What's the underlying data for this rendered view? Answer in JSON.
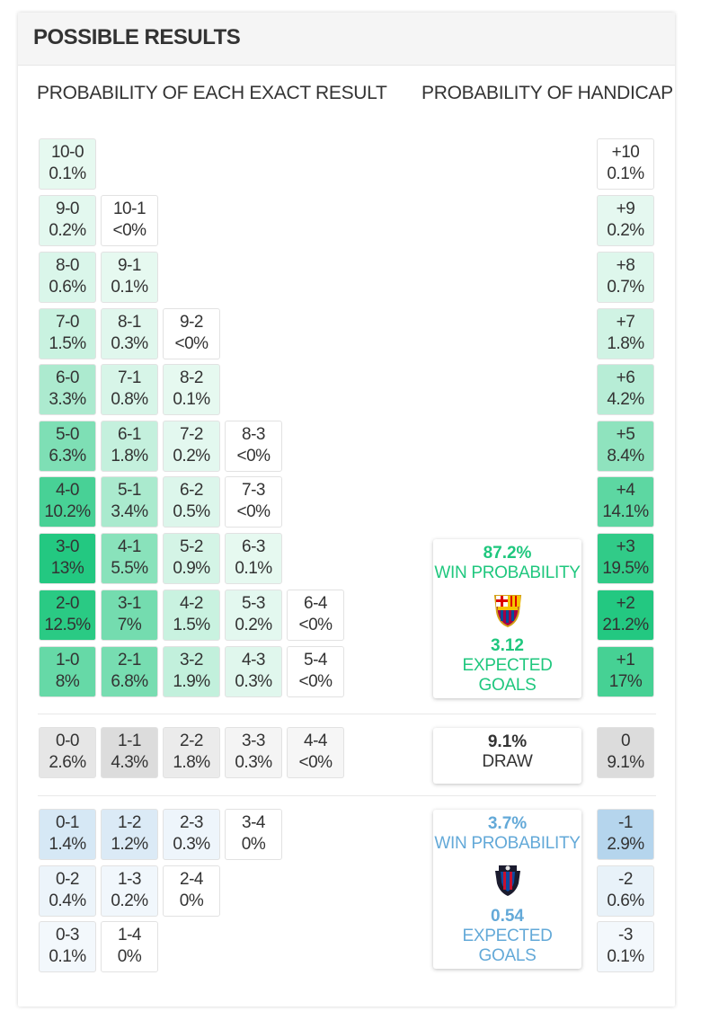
{
  "title": "POSSIBLE RESULTS",
  "exact_heading": "PROBABILITY OF EACH EXACT RESULT",
  "handicap_heading": "PROBABILITY OF HANDICAP",
  "colors": {
    "green_text": "#1fc77e",
    "blue_text": "#63a9d8"
  },
  "home_wins": [
    [
      {
        "s": "10-0",
        "p": "0.1%"
      }
    ],
    [
      {
        "s": "9-0",
        "p": "0.2%"
      },
      {
        "s": "10-1",
        "p": "<0%"
      }
    ],
    [
      {
        "s": "8-0",
        "p": "0.6%"
      },
      {
        "s": "9-1",
        "p": "0.1%"
      }
    ],
    [
      {
        "s": "7-0",
        "p": "1.5%"
      },
      {
        "s": "8-1",
        "p": "0.3%"
      },
      {
        "s": "9-2",
        "p": "<0%"
      }
    ],
    [
      {
        "s": "6-0",
        "p": "3.3%"
      },
      {
        "s": "7-1",
        "p": "0.8%"
      },
      {
        "s": "8-2",
        "p": "0.1%"
      }
    ],
    [
      {
        "s": "5-0",
        "p": "6.3%"
      },
      {
        "s": "6-1",
        "p": "1.8%"
      },
      {
        "s": "7-2",
        "p": "0.2%"
      },
      {
        "s": "8-3",
        "p": "<0%"
      }
    ],
    [
      {
        "s": "4-0",
        "p": "10.2%"
      },
      {
        "s": "5-1",
        "p": "3.4%"
      },
      {
        "s": "6-2",
        "p": "0.5%"
      },
      {
        "s": "7-3",
        "p": "<0%"
      }
    ],
    [
      {
        "s": "3-0",
        "p": "13%"
      },
      {
        "s": "4-1",
        "p": "5.5%"
      },
      {
        "s": "5-2",
        "p": "0.9%"
      },
      {
        "s": "6-3",
        "p": "0.1%"
      }
    ],
    [
      {
        "s": "2-0",
        "p": "12.5%"
      },
      {
        "s": "3-1",
        "p": "7%"
      },
      {
        "s": "4-2",
        "p": "1.5%"
      },
      {
        "s": "5-3",
        "p": "0.2%"
      },
      {
        "s": "6-4",
        "p": "<0%"
      }
    ],
    [
      {
        "s": "1-0",
        "p": "8%"
      },
      {
        "s": "2-1",
        "p": "6.8%"
      },
      {
        "s": "3-2",
        "p": "1.9%"
      },
      {
        "s": "4-3",
        "p": "0.3%"
      },
      {
        "s": "5-4",
        "p": "<0%"
      }
    ]
  ],
  "draws": [
    {
      "s": "0-0",
      "p": "2.6%"
    },
    {
      "s": "1-1",
      "p": "4.3%"
    },
    {
      "s": "2-2",
      "p": "1.8%"
    },
    {
      "s": "3-3",
      "p": "0.3%"
    },
    {
      "s": "4-4",
      "p": "<0%"
    }
  ],
  "away_wins": [
    [
      {
        "s": "0-1",
        "p": "1.4%"
      },
      {
        "s": "1-2",
        "p": "1.2%"
      },
      {
        "s": "2-3",
        "p": "0.3%"
      },
      {
        "s": "3-4",
        "p": "0%"
      }
    ],
    [
      {
        "s": "0-2",
        "p": "0.4%"
      },
      {
        "s": "1-3",
        "p": "0.2%"
      },
      {
        "s": "2-4",
        "p": "0%"
      }
    ],
    [
      {
        "s": "0-3",
        "p": "0.1%"
      },
      {
        "s": "1-4",
        "p": "0%"
      }
    ]
  ],
  "handicap_home": [
    {
      "s": "+10",
      "p": "0.1%"
    },
    {
      "s": "+9",
      "p": "0.2%"
    },
    {
      "s": "+8",
      "p": "0.7%"
    },
    {
      "s": "+7",
      "p": "1.8%"
    },
    {
      "s": "+6",
      "p": "4.2%"
    },
    {
      "s": "+5",
      "p": "8.4%"
    },
    {
      "s": "+4",
      "p": "14.1%"
    },
    {
      "s": "+3",
      "p": "19.5%"
    },
    {
      "s": "+2",
      "p": "21.2%"
    },
    {
      "s": "+1",
      "p": "17%"
    }
  ],
  "handicap_draw": {
    "s": "0",
    "p": "9.1%"
  },
  "handicap_away": [
    {
      "s": "-1",
      "p": "2.9%"
    },
    {
      "s": "-2",
      "p": "0.6%"
    },
    {
      "s": "-3",
      "p": "0.1%"
    }
  ],
  "home_card": {
    "win_pct": "87.2%",
    "win_label": "WIN PROBABILITY",
    "goals": "3.12",
    "goals_label": "EXPECTED GOALS",
    "crest": "barcelona-crest"
  },
  "draw_card": {
    "pct": "9.1%",
    "label": "DRAW"
  },
  "away_card": {
    "win_pct": "3.7%",
    "win_label": "WIN PROBABILITY",
    "goals": "0.54",
    "goals_label": "EXPECTED GOALS",
    "crest": "levante-crest"
  }
}
